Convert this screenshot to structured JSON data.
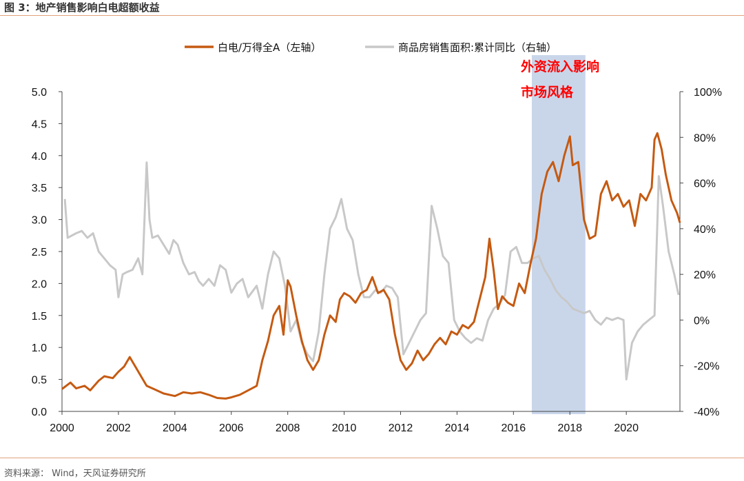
{
  "figure": {
    "title": "图 3：地产销售影响白电超额收益",
    "source": "资料来源：  Wind，天风证券研究所"
  },
  "colors": {
    "left_series": "#c55a11",
    "right_series": "#c8c8c8",
    "shade": "#c9d6ea",
    "annotation": "#ff0000",
    "rule": "#e0a27a"
  },
  "chart_data": {
    "type": "line",
    "title": "",
    "xlabel": "",
    "ylabel": "",
    "xlim": [
      2000,
      2021.9
    ],
    "ylim_left": [
      0,
      5
    ],
    "ylim_right": [
      -0.4,
      1.0
    ],
    "grid": false,
    "legend_position": "top-center",
    "x_ticks": [
      "2000",
      "2002",
      "2004",
      "2006",
      "2008",
      "2010",
      "2012",
      "2014",
      "2016",
      "2018",
      "2020"
    ],
    "y_left_ticks": [
      "0.0",
      "0.5",
      "1.0",
      "1.5",
      "2.0",
      "2.5",
      "3.0",
      "3.5",
      "4.0",
      "4.5",
      "5.0"
    ],
    "y_right_ticks": [
      "-40%",
      "-20%",
      "0%",
      "20%",
      "40%",
      "60%",
      "80%",
      "100%"
    ],
    "shaded_region": {
      "x_start": 2016.65,
      "x_end": 2018.55
    },
    "annotation_lines": [
      "外资流入影响",
      "市场风格"
    ],
    "series": [
      {
        "name": "白电/万得全A（左轴）",
        "axis": "left",
        "x": [
          2000.0,
          2000.3,
          2000.5,
          2000.8,
          2001.0,
          2001.3,
          2001.5,
          2001.8,
          2002.0,
          2002.2,
          2002.4,
          2002.6,
          2002.8,
          2003.0,
          2003.3,
          2003.6,
          2004.0,
          2004.3,
          2004.6,
          2004.9,
          2005.2,
          2005.5,
          2005.8,
          2006.0,
          2006.3,
          2006.6,
          2006.9,
          2007.1,
          2007.3,
          2007.5,
          2007.7,
          2007.85,
          2008.0,
          2008.1,
          2008.3,
          2008.5,
          2008.7,
          2008.9,
          2009.1,
          2009.3,
          2009.5,
          2009.7,
          2009.85,
          2010.0,
          2010.2,
          2010.4,
          2010.6,
          2010.8,
          2011.0,
          2011.2,
          2011.4,
          2011.6,
          2011.8,
          2012.0,
          2012.2,
          2012.4,
          2012.6,
          2012.8,
          2013.0,
          2013.2,
          2013.4,
          2013.6,
          2013.8,
          2014.0,
          2014.2,
          2014.4,
          2014.6,
          2014.8,
          2015.0,
          2015.15,
          2015.3,
          2015.45,
          2015.6,
          2015.8,
          2016.0,
          2016.2,
          2016.4,
          2016.6,
          2016.8,
          2017.0,
          2017.2,
          2017.4,
          2017.6,
          2017.8,
          2018.0,
          2018.1,
          2018.3,
          2018.5,
          2018.7,
          2018.9,
          2019.1,
          2019.3,
          2019.5,
          2019.7,
          2019.9,
          2020.1,
          2020.3,
          2020.5,
          2020.7,
          2020.9,
          2021.0,
          2021.1,
          2021.25,
          2021.4,
          2021.6,
          2021.8,
          2021.9
        ],
        "values": [
          0.35,
          0.45,
          0.36,
          0.4,
          0.33,
          0.48,
          0.55,
          0.52,
          0.62,
          0.7,
          0.85,
          0.7,
          0.55,
          0.4,
          0.34,
          0.28,
          0.24,
          0.3,
          0.28,
          0.3,
          0.26,
          0.21,
          0.2,
          0.22,
          0.26,
          0.33,
          0.4,
          0.8,
          1.1,
          1.5,
          1.65,
          1.2,
          2.05,
          1.95,
          1.5,
          1.1,
          0.8,
          0.65,
          0.8,
          1.2,
          1.5,
          1.4,
          1.75,
          1.85,
          1.8,
          1.7,
          1.85,
          1.9,
          2.1,
          1.85,
          1.9,
          1.75,
          1.2,
          0.8,
          0.65,
          0.75,
          0.95,
          0.8,
          0.9,
          1.05,
          1.15,
          1.05,
          1.25,
          1.2,
          1.35,
          1.3,
          1.4,
          1.75,
          2.1,
          2.7,
          2.2,
          1.6,
          1.8,
          1.7,
          1.65,
          2.0,
          1.85,
          2.3,
          2.7,
          3.4,
          3.75,
          3.9,
          3.6,
          4.0,
          4.3,
          3.85,
          3.9,
          3.0,
          2.7,
          2.75,
          3.4,
          3.6,
          3.3,
          3.4,
          3.2,
          3.3,
          2.9,
          3.4,
          3.3,
          3.5,
          4.25,
          4.35,
          4.1,
          3.7,
          3.3,
          3.1,
          2.95
        ]
      },
      {
        "name": "商品房销售面积:累计同比（右轴）",
        "axis": "right",
        "x": [
          2000.1,
          2000.2,
          2000.5,
          2000.7,
          2000.9,
          2001.1,
          2001.3,
          2001.5,
          2001.7,
          2001.9,
          2002.0,
          2002.15,
          2002.3,
          2002.5,
          2002.7,
          2002.85,
          2003.0,
          2003.1,
          2003.2,
          2003.4,
          2003.6,
          2003.8,
          2003.95,
          2004.1,
          2004.3,
          2004.5,
          2004.7,
          2004.85,
          2005.0,
          2005.2,
          2005.4,
          2005.6,
          2005.8,
          2006.0,
          2006.2,
          2006.4,
          2006.6,
          2006.9,
          2007.1,
          2007.3,
          2007.5,
          2007.7,
          2007.9,
          2008.1,
          2008.3,
          2008.5,
          2008.7,
          2008.9,
          2009.1,
          2009.3,
          2009.5,
          2009.7,
          2009.9,
          2010.1,
          2010.3,
          2010.5,
          2010.7,
          2010.9,
          2011.1,
          2011.3,
          2011.5,
          2011.7,
          2011.9,
          2012.1,
          2012.3,
          2012.5,
          2012.7,
          2012.9,
          2013.1,
          2013.3,
          2013.5,
          2013.7,
          2013.9,
          2014.1,
          2014.3,
          2014.5,
          2014.7,
          2014.9,
          2015.1,
          2015.3,
          2015.5,
          2015.7,
          2015.9,
          2016.1,
          2016.3,
          2016.5,
          2016.7,
          2016.9,
          2017.1,
          2017.3,
          2017.5,
          2017.7,
          2017.9,
          2018.1,
          2018.3,
          2018.5,
          2018.7,
          2018.9,
          2019.1,
          2019.3,
          2019.5,
          2019.7,
          2019.9,
          2020.0,
          2020.2,
          2020.4,
          2020.6,
          2020.8,
          2021.0,
          2021.15,
          2021.3,
          2021.5,
          2021.7,
          2021.85
        ],
        "values": [
          0.53,
          0.36,
          0.38,
          0.39,
          0.36,
          0.38,
          0.3,
          0.27,
          0.24,
          0.22,
          0.1,
          0.2,
          0.21,
          0.22,
          0.27,
          0.2,
          0.69,
          0.44,
          0.36,
          0.37,
          0.33,
          0.29,
          0.35,
          0.33,
          0.25,
          0.2,
          0.21,
          0.17,
          0.15,
          0.18,
          0.15,
          0.24,
          0.22,
          0.12,
          0.16,
          0.18,
          0.1,
          0.15,
          0.05,
          0.2,
          0.3,
          0.27,
          0.15,
          -0.05,
          0.0,
          -0.1,
          -0.15,
          -0.18,
          -0.05,
          0.2,
          0.4,
          0.45,
          0.53,
          0.4,
          0.35,
          0.2,
          0.1,
          0.1,
          0.13,
          0.12,
          0.15,
          0.14,
          0.1,
          -0.15,
          -0.1,
          -0.05,
          0.0,
          0.03,
          0.5,
          0.4,
          0.28,
          0.25,
          0.0,
          -0.05,
          -0.08,
          -0.1,
          -0.08,
          -0.09,
          0.0,
          0.05,
          0.07,
          0.11,
          0.3,
          0.32,
          0.25,
          0.25,
          0.27,
          0.28,
          0.22,
          0.18,
          0.13,
          0.1,
          0.08,
          0.05,
          0.04,
          0.03,
          0.04,
          0.0,
          -0.02,
          0.01,
          0.0,
          0.01,
          0.0,
          -0.26,
          -0.1,
          -0.05,
          -0.02,
          0.0,
          0.02,
          0.63,
          0.5,
          0.3,
          0.2,
          0.11
        ]
      }
    ]
  }
}
